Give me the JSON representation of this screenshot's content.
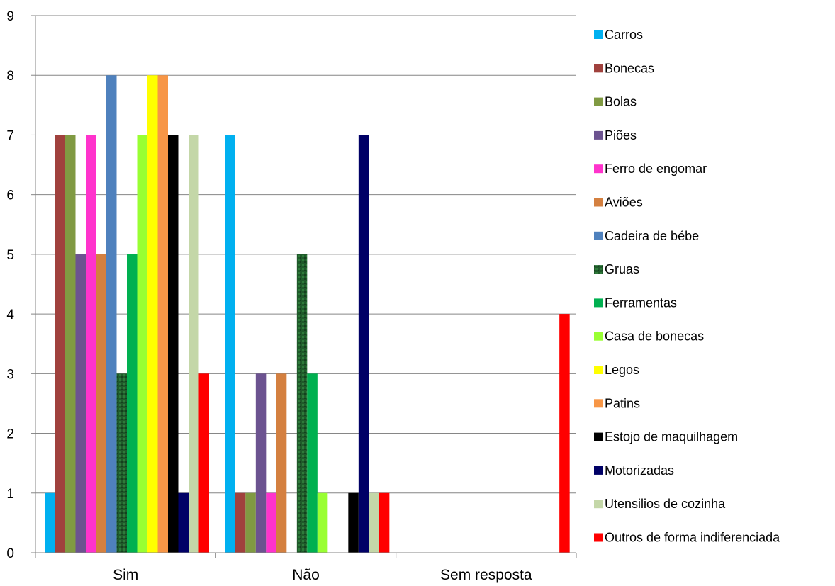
{
  "chart_data": {
    "type": "bar",
    "title": "",
    "xlabel": "",
    "ylabel": "",
    "ylim": [
      0,
      9
    ],
    "yticks": [
      0,
      1,
      2,
      3,
      4,
      5,
      6,
      7,
      8,
      9
    ],
    "grid": true,
    "legend_position": "right",
    "categories": [
      "Sim",
      "Não",
      "Sem resposta"
    ],
    "series": [
      {
        "name": "Carros",
        "color": "#00B0F0",
        "values": [
          1,
          7,
          0
        ]
      },
      {
        "name": "Bonecas",
        "color": "#A0413D",
        "values": [
          7,
          1,
          0
        ]
      },
      {
        "name": "Bolas",
        "color": "#809A42",
        "values": [
          7,
          1,
          0
        ]
      },
      {
        "name": "Piões",
        "color": "#6C5390",
        "values": [
          5,
          3,
          0
        ]
      },
      {
        "name": "Ferro de engomar",
        "color": "#FF33CC",
        "values": [
          7,
          1,
          0
        ]
      },
      {
        "name": "Aviões",
        "color": "#D48040",
        "values": [
          5,
          3,
          0
        ]
      },
      {
        "name": "Cadeira de bébe",
        "color": "#4F81BD",
        "values": [
          8,
          0,
          0
        ]
      },
      {
        "name": "Gruas",
        "color": "#1F5A2A",
        "values": [
          3,
          5,
          0
        ]
      },
      {
        "name": "Ferramentas",
        "color": "#00B050",
        "values": [
          5,
          3,
          0
        ]
      },
      {
        "name": "Casa de bonecas",
        "color": "#99FF33",
        "values": [
          7,
          1,
          0
        ]
      },
      {
        "name": "Legos",
        "color": "#FFFF00",
        "values": [
          8,
          0,
          0
        ]
      },
      {
        "name": "Patins",
        "color": "#F79646",
        "values": [
          8,
          0,
          0
        ]
      },
      {
        "name": "Estojo de maquilhagem",
        "color": "#000000",
        "values": [
          7,
          1,
          0
        ]
      },
      {
        "name": "Motorizadas",
        "color": "#000066",
        "values": [
          1,
          7,
          0
        ]
      },
      {
        "name": "Utensilios de cozinha",
        "color": "#C4D7A8",
        "values": [
          7,
          1,
          0
        ]
      },
      {
        "name": "Outros de forma indiferenciada",
        "color": "#FF0000",
        "values": [
          3,
          1,
          4
        ]
      }
    ]
  }
}
